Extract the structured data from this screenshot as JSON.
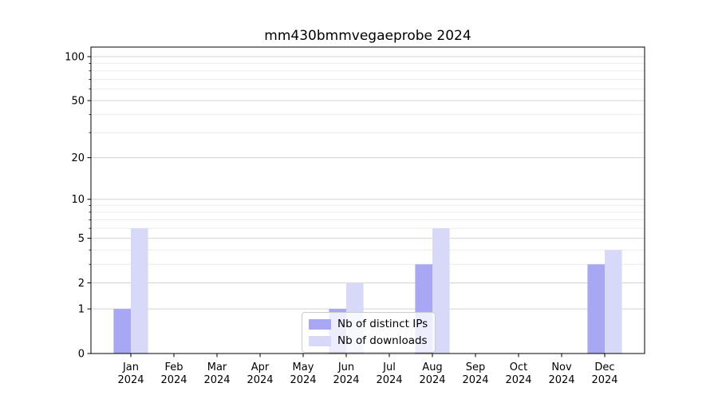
{
  "chart_data": {
    "type": "bar",
    "title": "mm430bmmvegaeprobe 2024",
    "categories": [
      "Jan 2024",
      "Feb 2024",
      "Mar 2024",
      "Apr 2024",
      "May 2024",
      "Jun 2024",
      "Jul 2024",
      "Aug 2024",
      "Sep 2024",
      "Oct 2024",
      "Nov 2024",
      "Dec 2024"
    ],
    "series": [
      {
        "name": "Nb of distinct IPs",
        "color": "#a7a7f3",
        "values": [
          1,
          0,
          0,
          0,
          0,
          1,
          0,
          3,
          0,
          0,
          0,
          3
        ]
      },
      {
        "name": "Nb of downloads",
        "color": "#d8d8f8",
        "values": [
          6,
          0,
          0,
          0,
          0,
          2,
          0,
          6,
          0,
          0,
          0,
          4
        ]
      }
    ],
    "xlabel": "",
    "ylabel": "",
    "yscale": "log1p",
    "ylim": [
      0,
      116
    ],
    "yticks": [
      0,
      1,
      2,
      5,
      10,
      20,
      50,
      100
    ],
    "minor_yticks": [
      3,
      4,
      6,
      7,
      8,
      9,
      30,
      40,
      60,
      70,
      80,
      90
    ],
    "grid": "horizontal",
    "legend_position": "lower center",
    "colors": {
      "major_grid": "#d4d4d4",
      "minor_grid": "#ececec",
      "spine": "#000000",
      "tick_label": "#000000"
    }
  }
}
